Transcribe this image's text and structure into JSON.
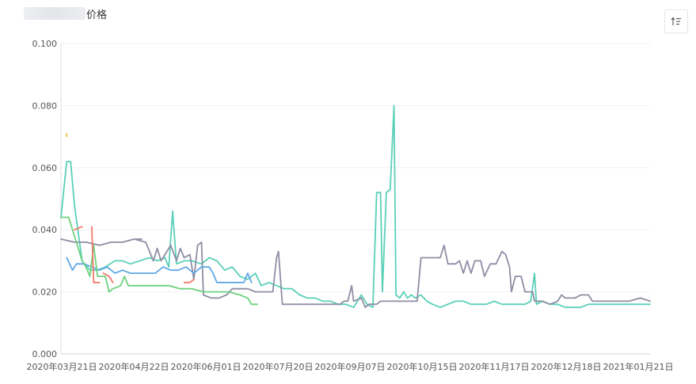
{
  "header": {
    "title_suffix": "价格",
    "sort_icon": "sort-ascending-icon"
  },
  "chart_data": {
    "type": "line",
    "title": "价格",
    "ylim": [
      0,
      0.1
    ],
    "y_ticks": [
      "0.000",
      "0.020",
      "0.040",
      "0.060",
      "0.080",
      "0.100"
    ],
    "x_ticks": [
      "2020年03月21日",
      "2020年04月22日",
      "2020年06月01日",
      "2020年07月20日",
      "2020年09月07日",
      "2020年10月15日",
      "2020年11月17日",
      "2020年12月18日",
      "2021年01月21日"
    ],
    "x_range": [
      "2020-03-21",
      "2021-01-21"
    ],
    "grid": true,
    "legend": "none",
    "series": [
      {
        "color": "#5ad0b8",
        "points": [
          [
            "2020-03-21",
            0.044
          ],
          [
            "2020-03-24",
            0.062
          ],
          [
            "2020-03-26",
            0.062
          ],
          [
            "2020-03-28",
            0.048
          ],
          [
            "2020-04-01",
            0.03
          ],
          [
            "2020-04-05",
            0.027
          ],
          [
            "2020-04-09",
            0.027
          ],
          [
            "2020-04-13",
            0.028
          ],
          [
            "2020-04-18",
            0.03
          ],
          [
            "2020-04-22",
            0.03
          ],
          [
            "2020-04-26",
            0.029
          ],
          [
            "2020-05-01",
            0.03
          ],
          [
            "2020-05-06",
            0.031
          ],
          [
            "2020-05-10",
            0.03
          ],
          [
            "2020-05-14",
            0.031
          ],
          [
            "2020-05-16",
            0.028
          ],
          [
            "2020-05-18",
            0.046
          ],
          [
            "2020-05-20",
            0.029
          ],
          [
            "2020-05-24",
            0.03
          ],
          [
            "2020-05-28",
            0.03
          ],
          [
            "2020-06-02",
            0.029
          ],
          [
            "2020-06-06",
            0.031
          ],
          [
            "2020-06-10",
            0.03
          ],
          [
            "2020-06-14",
            0.027
          ],
          [
            "2020-06-18",
            0.028
          ],
          [
            "2020-06-22",
            0.025
          ],
          [
            "2020-06-26",
            0.024
          ],
          [
            "2020-06-30",
            0.026
          ],
          [
            "2020-07-03",
            0.022
          ],
          [
            "2020-07-07",
            0.023
          ],
          [
            "2020-07-11",
            0.022
          ],
          [
            "2020-07-15",
            0.021
          ],
          [
            "2020-07-19",
            0.021
          ],
          [
            "2020-07-23",
            0.019
          ],
          [
            "2020-07-27",
            0.018
          ],
          [
            "2020-07-31",
            0.018
          ],
          [
            "2020-08-04",
            0.017
          ],
          [
            "2020-08-08",
            0.017
          ],
          [
            "2020-08-12",
            0.016
          ],
          [
            "2020-08-16",
            0.016
          ],
          [
            "2020-08-20",
            0.015
          ],
          [
            "2020-08-24",
            0.019
          ],
          [
            "2020-08-27",
            0.016
          ],
          [
            "2020-08-30",
            0.015
          ],
          [
            "2020-09-01",
            0.052
          ],
          [
            "2020-09-03",
            0.052
          ],
          [
            "2020-09-04",
            0.02
          ],
          [
            "2020-09-06",
            0.052
          ],
          [
            "2020-09-08",
            0.053
          ],
          [
            "2020-09-10",
            0.08
          ],
          [
            "2020-09-11",
            0.019
          ],
          [
            "2020-09-13",
            0.018
          ],
          [
            "2020-09-15",
            0.02
          ],
          [
            "2020-09-17",
            0.018
          ],
          [
            "2020-09-19",
            0.019
          ],
          [
            "2020-09-21",
            0.018
          ],
          [
            "2020-09-24",
            0.019
          ],
          [
            "2020-09-27",
            0.017
          ],
          [
            "2020-09-30",
            0.016
          ],
          [
            "2020-10-04",
            0.015
          ],
          [
            "2020-10-08",
            0.016
          ],
          [
            "2020-10-12",
            0.017
          ],
          [
            "2020-10-16",
            0.017
          ],
          [
            "2020-10-20",
            0.016
          ],
          [
            "2020-10-24",
            0.016
          ],
          [
            "2020-10-28",
            0.016
          ],
          [
            "2020-11-01",
            0.017
          ],
          [
            "2020-11-05",
            0.016
          ],
          [
            "2020-11-09",
            0.016
          ],
          [
            "2020-11-13",
            0.016
          ],
          [
            "2020-11-17",
            0.016
          ],
          [
            "2020-11-20",
            0.017
          ],
          [
            "2020-11-22",
            0.026
          ],
          [
            "2020-11-23",
            0.016
          ],
          [
            "2020-11-26",
            0.017
          ],
          [
            "2020-11-30",
            0.016
          ],
          [
            "2020-12-04",
            0.016
          ],
          [
            "2020-12-08",
            0.015
          ],
          [
            "2020-12-12",
            0.015
          ],
          [
            "2020-12-16",
            0.015
          ],
          [
            "2020-12-20",
            0.016
          ],
          [
            "2020-12-24",
            0.016
          ],
          [
            "2020-12-28",
            0.016
          ],
          [
            "2021-01-02",
            0.016
          ],
          [
            "2021-01-08",
            0.016
          ],
          [
            "2021-01-14",
            0.016
          ],
          [
            "2021-01-21",
            0.016
          ]
        ]
      },
      {
        "color": "#8e8ea5",
        "points": [
          [
            "2020-03-21",
            0.037
          ],
          [
            "2020-03-28",
            0.036
          ],
          [
            "2020-04-03",
            0.036
          ],
          [
            "2020-04-10",
            0.035
          ],
          [
            "2020-04-16",
            0.036
          ],
          [
            "2020-04-22",
            0.036
          ],
          [
            "2020-04-28",
            0.037
          ],
          [
            "2020-05-04",
            0.036
          ],
          [
            "2020-05-08",
            0.03
          ],
          [
            "2020-05-10",
            0.034
          ],
          [
            "2020-05-12",
            0.03
          ],
          [
            "2020-05-14",
            0.032
          ],
          [
            "2020-05-17",
            0.035
          ],
          [
            "2020-05-20",
            0.03
          ],
          [
            "2020-05-22",
            0.034
          ],
          [
            "2020-05-24",
            0.031
          ],
          [
            "2020-05-27",
            0.032
          ],
          [
            "2020-05-29",
            0.024
          ],
          [
            "2020-05-31",
            0.035
          ],
          [
            "2020-06-02",
            0.036
          ],
          [
            "2020-06-03",
            0.019
          ],
          [
            "2020-06-07",
            0.018
          ],
          [
            "2020-06-11",
            0.018
          ],
          [
            "2020-06-15",
            0.019
          ],
          [
            "2020-06-18",
            0.021
          ],
          [
            "2020-06-22",
            0.021
          ],
          [
            "2020-06-26",
            0.021
          ],
          [
            "2020-06-30",
            0.02
          ],
          [
            "2020-07-04",
            0.02
          ],
          [
            "2020-07-09",
            0.02
          ],
          [
            "2020-07-11",
            0.031
          ],
          [
            "2020-07-12",
            0.033
          ],
          [
            "2020-07-14",
            0.016
          ],
          [
            "2020-07-20",
            0.016
          ],
          [
            "2020-07-28",
            0.016
          ],
          [
            "2020-08-05",
            0.016
          ],
          [
            "2020-08-13",
            0.016
          ],
          [
            "2020-08-15",
            0.017
          ],
          [
            "2020-08-17",
            0.017
          ],
          [
            "2020-08-19",
            0.022
          ],
          [
            "2020-08-20",
            0.017
          ],
          [
            "2020-08-24",
            0.018
          ],
          [
            "2020-08-26",
            0.015
          ],
          [
            "2020-08-28",
            0.016
          ],
          [
            "2020-09-01",
            0.016
          ],
          [
            "2020-09-03",
            0.017
          ],
          [
            "2020-09-08",
            0.017
          ],
          [
            "2020-09-15",
            0.017
          ],
          [
            "2020-09-22",
            0.017
          ],
          [
            "2020-09-24",
            0.031
          ],
          [
            "2020-09-30",
            0.031
          ],
          [
            "2020-10-04",
            0.031
          ],
          [
            "2020-10-06",
            0.035
          ],
          [
            "2020-10-08",
            0.029
          ],
          [
            "2020-10-12",
            0.029
          ],
          [
            "2020-10-14",
            0.03
          ],
          [
            "2020-10-16",
            0.026
          ],
          [
            "2020-10-18",
            0.03
          ],
          [
            "2020-10-20",
            0.026
          ],
          [
            "2020-10-22",
            0.03
          ],
          [
            "2020-10-25",
            0.03
          ],
          [
            "2020-10-27",
            0.025
          ],
          [
            "2020-10-30",
            0.029
          ],
          [
            "2020-11-02",
            0.029
          ],
          [
            "2020-11-05",
            0.033
          ],
          [
            "2020-11-07",
            0.032
          ],
          [
            "2020-11-09",
            0.028
          ],
          [
            "2020-11-10",
            0.02
          ],
          [
            "2020-11-12",
            0.025
          ],
          [
            "2020-11-15",
            0.025
          ],
          [
            "2020-11-17",
            0.02
          ],
          [
            "2020-11-21",
            0.02
          ],
          [
            "2020-11-22",
            0.017
          ],
          [
            "2020-11-26",
            0.017
          ],
          [
            "2020-11-30",
            0.016
          ],
          [
            "2020-12-04",
            0.017
          ],
          [
            "2020-12-06",
            0.019
          ],
          [
            "2020-12-08",
            0.018
          ],
          [
            "2020-12-13",
            0.018
          ],
          [
            "2020-12-16",
            0.019
          ],
          [
            "2020-12-20",
            0.019
          ],
          [
            "2020-12-22",
            0.017
          ],
          [
            "2020-12-28",
            0.017
          ],
          [
            "2021-01-04",
            0.017
          ],
          [
            "2021-01-10",
            0.017
          ],
          [
            "2021-01-16",
            0.018
          ],
          [
            "2021-01-21",
            0.017
          ]
        ]
      },
      {
        "color": "#5fa8e6",
        "points": [
          [
            "2020-03-24",
            0.031
          ],
          [
            "2020-03-27",
            0.027
          ],
          [
            "2020-03-29",
            0.029
          ],
          [
            "2020-04-02",
            0.029
          ],
          [
            "2020-04-06",
            0.028
          ],
          [
            "2020-04-10",
            0.027
          ],
          [
            "2020-04-14",
            0.028
          ],
          [
            "2020-04-18",
            0.026
          ],
          [
            "2020-04-22",
            0.027
          ],
          [
            "2020-04-26",
            0.026
          ],
          [
            "2020-05-01",
            0.026
          ],
          [
            "2020-05-05",
            0.026
          ],
          [
            "2020-05-09",
            0.026
          ],
          [
            "2020-05-13",
            0.028
          ],
          [
            "2020-05-17",
            0.027
          ],
          [
            "2020-05-21",
            0.027
          ],
          [
            "2020-05-25",
            0.028
          ],
          [
            "2020-05-29",
            0.026
          ],
          [
            "2020-06-02",
            0.028
          ],
          [
            "2020-06-06",
            0.028
          ],
          [
            "2020-06-08",
            0.026
          ],
          [
            "2020-06-10",
            0.023
          ],
          [
            "2020-06-15",
            0.023
          ],
          [
            "2020-06-20",
            0.023
          ],
          [
            "2020-06-24",
            0.023
          ],
          [
            "2020-06-26",
            0.026
          ],
          [
            "2020-06-28",
            0.023
          ]
        ]
      },
      {
        "color": "#6fd17f",
        "points": [
          [
            "2020-03-21",
            0.044
          ],
          [
            "2020-03-25",
            0.044
          ],
          [
            "2020-03-28",
            0.038
          ],
          [
            "2020-04-01",
            0.03
          ],
          [
            "2020-04-03",
            0.028
          ],
          [
            "2020-04-05",
            0.025
          ],
          [
            "2020-04-07",
            0.035
          ],
          [
            "2020-04-09",
            0.025
          ],
          [
            "2020-04-13",
            0.025
          ],
          [
            "2020-04-15",
            0.02
          ],
          [
            "2020-04-17",
            0.021
          ],
          [
            "2020-04-21",
            0.022
          ],
          [
            "2020-04-23",
            0.025
          ],
          [
            "2020-04-25",
            0.022
          ],
          [
            "2020-04-29",
            0.022
          ],
          [
            "2020-05-04",
            0.022
          ],
          [
            "2020-05-10",
            0.022
          ],
          [
            "2020-05-16",
            0.022
          ],
          [
            "2020-05-22",
            0.021
          ],
          [
            "2020-05-28",
            0.021
          ],
          [
            "2020-06-03",
            0.02
          ],
          [
            "2020-06-10",
            0.02
          ],
          [
            "2020-06-16",
            0.02
          ],
          [
            "2020-06-22",
            0.019
          ],
          [
            "2020-06-26",
            0.018
          ],
          [
            "2020-06-28",
            0.016
          ],
          [
            "2020-07-01",
            0.016
          ]
        ]
      },
      {
        "color": "#f0786a",
        "points": [
          [
            "2020-04-06",
            0.041
          ],
          [
            "2020-04-07",
            0.023
          ],
          [
            "2020-04-10",
            0.023
          ]
        ]
      },
      {
        "color": "#f0786a",
        "points": [
          [
            "2020-04-12",
            0.026
          ],
          [
            "2020-04-15",
            0.025
          ],
          [
            "2020-04-17",
            0.023
          ]
        ]
      },
      {
        "color": "#f0786a",
        "points": [
          [
            "2020-05-24",
            0.023
          ],
          [
            "2020-05-27",
            0.023
          ],
          [
            "2020-05-29",
            0.024
          ]
        ]
      },
      {
        "color": "#f0786a",
        "points": [
          [
            "2020-03-28",
            0.04
          ],
          [
            "2020-04-01",
            0.041
          ]
        ]
      },
      {
        "color": "#8e8ea5",
        "points": [
          [
            "2020-04-29",
            0.037
          ],
          [
            "2020-05-02",
            0.037
          ]
        ]
      },
      {
        "color": "#f5c34a",
        "points": [
          [
            "2020-03-24",
            0.071
          ],
          [
            "2020-03-24",
            0.07
          ]
        ]
      }
    ]
  }
}
